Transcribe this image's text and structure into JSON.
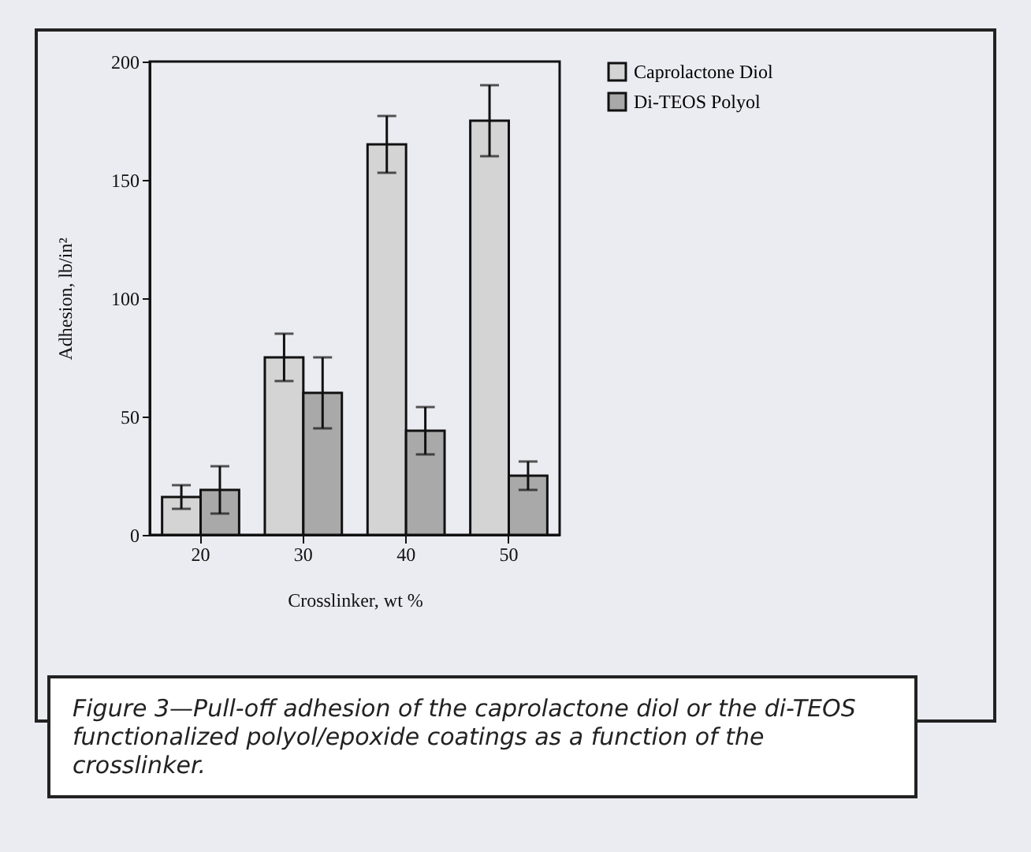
{
  "chart_data": {
    "type": "bar",
    "xlabel": "Crosslinker, wt %",
    "ylabel": "Adhesion, lb/in²",
    "categories": [
      "20",
      "30",
      "40",
      "50"
    ],
    "series": [
      {
        "name": "Caprolactone Diol",
        "color": "#d4d4d4",
        "values": [
          16,
          75,
          165,
          175
        ],
        "errors": [
          5,
          10,
          12,
          15
        ]
      },
      {
        "name": "Di-TEOS Polyol",
        "color": "#a9a9a9",
        "values": [
          19,
          60,
          44,
          25
        ],
        "errors": [
          10,
          15,
          10,
          6
        ]
      }
    ],
    "ylim": [
      0,
      200
    ],
    "yticks": [
      0,
      50,
      100,
      150,
      200
    ],
    "grid": false,
    "legend": "right",
    "annotations": [
      "Figure 3—Pull-off adhesion of the caprolactone diol or the di-TEOS functionalized polyol/epoxide coatings as a function of the crosslinker."
    ]
  }
}
